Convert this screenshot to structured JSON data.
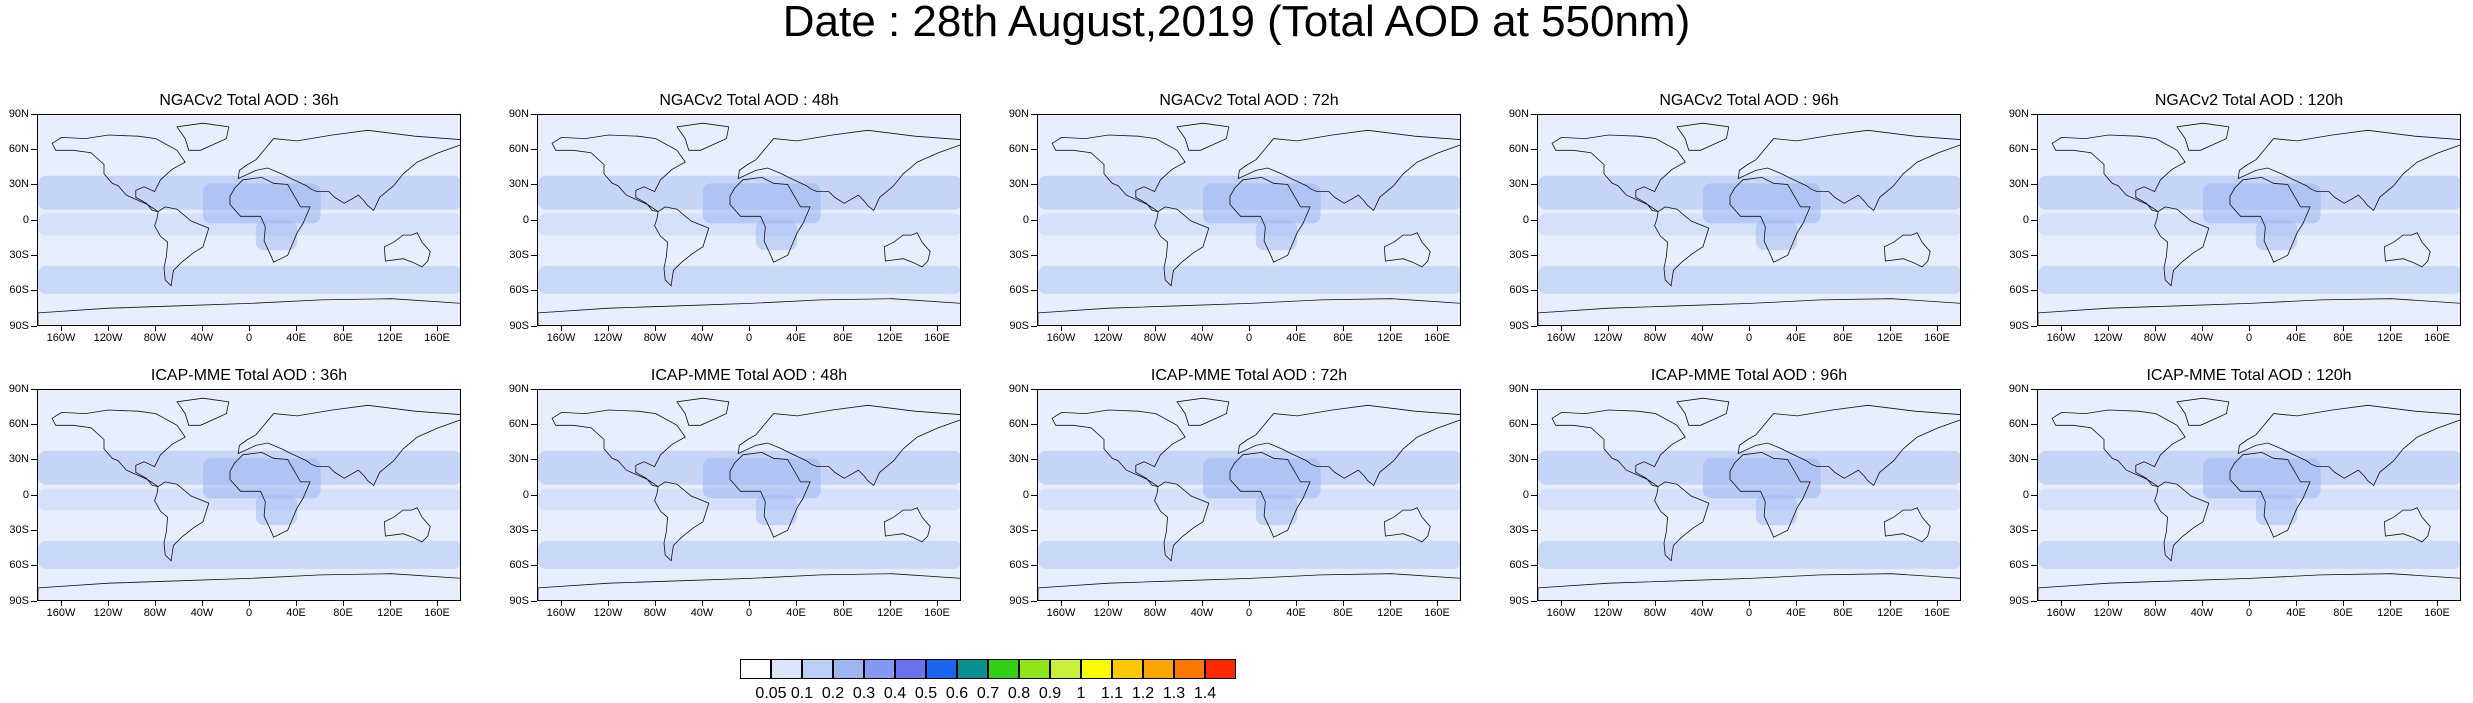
{
  "title": "Date : 28th August,2019 (Total AOD at 550nm)",
  "rows": [
    {
      "model": "NGACv2",
      "panels": [
        {
          "title": "NGACv2 Total AOD : 36h",
          "lead": "36h"
        },
        {
          "title": "NGACv2 Total AOD : 48h",
          "lead": "48h"
        },
        {
          "title": "NGACv2 Total AOD : 72h",
          "lead": "72h"
        },
        {
          "title": "NGACv2 Total AOD : 96h",
          "lead": "96h"
        },
        {
          "title": "NGACv2 Total AOD : 120h",
          "lead": "120h"
        }
      ]
    },
    {
      "model": "ICAP-MME",
      "panels": [
        {
          "title": "ICAP-MME Total AOD : 36h",
          "lead": "36h"
        },
        {
          "title": "ICAP-MME Total AOD : 48h",
          "lead": "48h"
        },
        {
          "title": "ICAP-MME Total AOD : 72h",
          "lead": "72h"
        },
        {
          "title": "ICAP-MME Total AOD : 96h",
          "lead": "96h"
        },
        {
          "title": "ICAP-MME Total AOD : 120h",
          "lead": "120h"
        }
      ]
    }
  ],
  "axes": {
    "lat_labels": [
      "90N",
      "60N",
      "30N",
      "0",
      "30S",
      "60S",
      "90S"
    ],
    "lon_labels": [
      "160W",
      "120W",
      "80W",
      "40W",
      "0",
      "40E",
      "80E",
      "120E",
      "160E"
    ]
  },
  "colorbar": {
    "labels": [
      "0.05",
      "0.1",
      "0.2",
      "0.3",
      "0.4",
      "0.5",
      "0.6",
      "0.7",
      "0.8",
      "0.9",
      "1",
      "1.1",
      "1.2",
      "1.3",
      "1.4"
    ],
    "colors": [
      "#ffffff",
      "#dbe6fa",
      "#bccff7",
      "#9db6f2",
      "#8398f0",
      "#6a72ee",
      "#1a66f0",
      "#0a9090",
      "#33d01a",
      "#8ee61a",
      "#c8f03a",
      "#fbfb00",
      "#fbc800",
      "#fba500",
      "#fb7800",
      "#fb2800"
    ]
  }
}
